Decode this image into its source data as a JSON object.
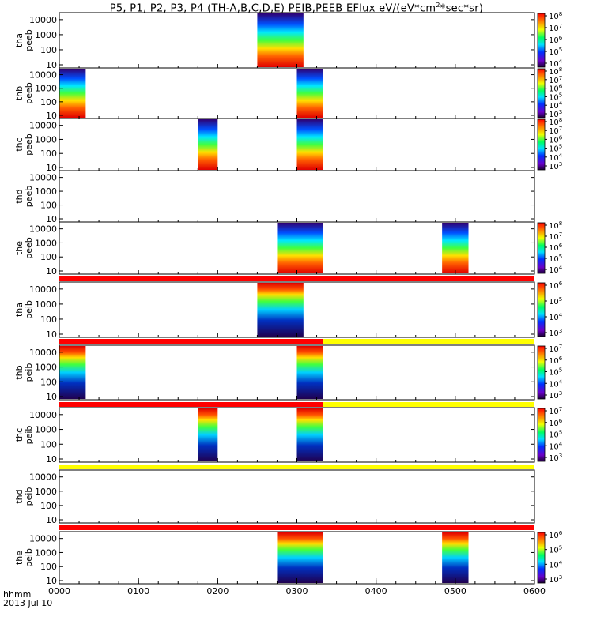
{
  "title": {
    "prefix": "P5, P1, P2, P3, P4 (TH-A,B,C,D,E) PEIB,PEEB EFlux eV/(eV*cm",
    "exponent": "2",
    "suffix": "*sec*sr)"
  },
  "x_axis_label": "hhmm",
  "date_label": "2013 Jul 10",
  "chart_data": {
    "type": "heatmap",
    "x_ticks": [
      "0000",
      "0100",
      "0200",
      "0300",
      "0400",
      "0500",
      "0600"
    ],
    "x_range_hhmm": [
      "0000",
      "0600"
    ],
    "y_scale": "log",
    "y_ticks": [
      "10",
      "100",
      "1000",
      "10000"
    ],
    "colorscale": "rainbow (purple-blue-cyan-green-yellow-red)",
    "panels": [
      {
        "label_top": "tha",
        "label_bottom": "peeb",
        "colorbar_ticks": [
          "10^4",
          "10^5",
          "10^6",
          "10^7",
          "10^8"
        ],
        "intervals_hhmm": [
          [
            "0230",
            "0305"
          ]
        ]
      },
      {
        "label_top": "thb",
        "label_bottom": "peeb",
        "colorbar_ticks": [
          "10^3",
          "10^4",
          "10^5",
          "10^6",
          "10^7",
          "10^8"
        ],
        "intervals_hhmm": [
          [
            "0000",
            "0020"
          ],
          [
            "0300",
            "0320"
          ]
        ]
      },
      {
        "label_top": "thc",
        "label_bottom": "peeb",
        "colorbar_ticks": [
          "10^3",
          "10^4",
          "10^5",
          "10^6",
          "10^7",
          "10^8"
        ],
        "intervals_hhmm": [
          [
            "0145",
            "0200"
          ],
          [
            "0300",
            "0320"
          ]
        ]
      },
      {
        "label_top": "thd",
        "label_bottom": "peeb",
        "colorbar_ticks": [],
        "intervals_hhmm": []
      },
      {
        "label_top": "the",
        "label_bottom": "peeb",
        "colorbar_ticks": [
          "10^4",
          "10^5",
          "10^6",
          "10^7",
          "10^8"
        ],
        "intervals_hhmm": [
          [
            "0245",
            "0320"
          ],
          [
            "0450",
            "0510"
          ]
        ]
      },
      {
        "label_top": "tha",
        "label_bottom": "peib",
        "colorbar_ticks": [
          "10^3",
          "10^4",
          "10^5",
          "10^6"
        ],
        "intervals_hhmm": [
          [
            "0230",
            "0305"
          ]
        ]
      },
      {
        "label_top": "thb",
        "label_bottom": "peib",
        "colorbar_ticks": [
          "10^3",
          "10^4",
          "10^5",
          "10^6",
          "10^7"
        ],
        "intervals_hhmm": [
          [
            "0000",
            "0020"
          ],
          [
            "0300",
            "0320"
          ]
        ]
      },
      {
        "label_top": "thc",
        "label_bottom": "peib",
        "colorbar_ticks": [
          "10^3",
          "10^4",
          "10^5",
          "10^6",
          "10^7"
        ],
        "intervals_hhmm": [
          [
            "0145",
            "0200"
          ],
          [
            "0300",
            "0320"
          ]
        ]
      },
      {
        "label_top": "thd",
        "label_bottom": "peib",
        "colorbar_ticks": [],
        "intervals_hhmm": []
      },
      {
        "label_top": "the",
        "label_bottom": "peib",
        "colorbar_ticks": [
          "10^3",
          "10^4",
          "10^5",
          "10^6"
        ],
        "intervals_hhmm": [
          [
            "0245",
            "0320"
          ],
          [
            "0450",
            "0510"
          ]
        ]
      }
    ],
    "mode_bars": [
      {
        "between_panels": 5,
        "segments": [
          {
            "from": "0000",
            "to": "0600",
            "color": "#ff0000"
          }
        ]
      },
      {
        "between_panels": 6,
        "segments": [
          {
            "from": "0000",
            "to": "0320",
            "color": "#ff0000"
          },
          {
            "from": "0320",
            "to": "0600",
            "color": "#ffff00"
          }
        ]
      },
      {
        "between_panels": 7,
        "segments": [
          {
            "from": "0000",
            "to": "0320",
            "color": "#ff0000"
          },
          {
            "from": "0320",
            "to": "0600",
            "color": "#ffff00"
          }
        ]
      },
      {
        "between_panels": 8,
        "segments": [
          {
            "from": "0000",
            "to": "0600",
            "color": "#ffff00"
          }
        ]
      },
      {
        "between_panels": 9,
        "segments": [
          {
            "from": "0000",
            "to": "0600",
            "color": "#ff0000"
          }
        ]
      }
    ]
  }
}
